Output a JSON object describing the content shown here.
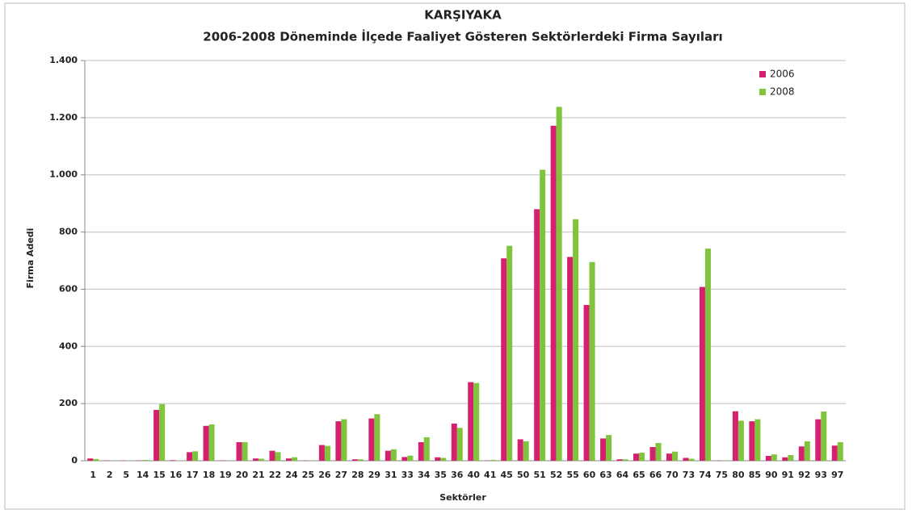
{
  "chart_data": {
    "type": "bar",
    "title": "KARŞIYAKA",
    "subtitle": "2006-2008 Döneminde İlçede Faaliyet Gösteren Sektörlerdeki Firma Sayıları",
    "x_label": "Sektörler",
    "y_label": "Firma Adedi",
    "categories": [
      "1",
      "2",
      "5",
      "14",
      "15",
      "16",
      "17",
      "18",
      "19",
      "20",
      "21",
      "22",
      "24",
      "25",
      "26",
      "27",
      "28",
      "29",
      "31",
      "33",
      "34",
      "35",
      "36",
      "40",
      "41",
      "45",
      "50",
      "51",
      "52",
      "55",
      "60",
      "63",
      "64",
      "65",
      "66",
      "70",
      "73",
      "74",
      "75",
      "80",
      "85",
      "90",
      "91",
      "92",
      "93",
      "97"
    ],
    "series": [
      {
        "name": "2006",
        "color": "#d4206e",
        "values": [
          8,
          1,
          1,
          1,
          178,
          2,
          30,
          122,
          1,
          65,
          8,
          35,
          8,
          1,
          55,
          138,
          5,
          148,
          35,
          13,
          65,
          12,
          130,
          275,
          1,
          708,
          75,
          880,
          1172,
          713,
          545,
          78,
          5,
          25,
          48,
          25,
          10,
          608,
          1,
          173,
          138,
          17,
          12,
          50,
          145,
          53
        ]
      },
      {
        "name": "2008",
        "color": "#80c43c",
        "values": [
          6,
          1,
          1,
          3,
          198,
          1,
          33,
          127,
          1,
          65,
          7,
          30,
          12,
          1,
          52,
          145,
          5,
          163,
          40,
          18,
          82,
          10,
          115,
          272,
          3,
          752,
          68,
          1018,
          1238,
          845,
          695,
          90,
          5,
          28,
          62,
          32,
          7,
          742,
          1,
          140,
          145,
          22,
          20,
          68,
          172,
          65
        ]
      }
    ],
    "ylim": [
      0,
      1400
    ],
    "yticks": [
      0,
      200,
      400,
      600,
      800,
      {
        "value": 1000,
        "label": "1.000"
      },
      {
        "value": 1200,
        "label": "1.200"
      },
      {
        "value": 1400,
        "label": "1.400"
      }
    ],
    "grid": true,
    "legend": "top-right"
  }
}
